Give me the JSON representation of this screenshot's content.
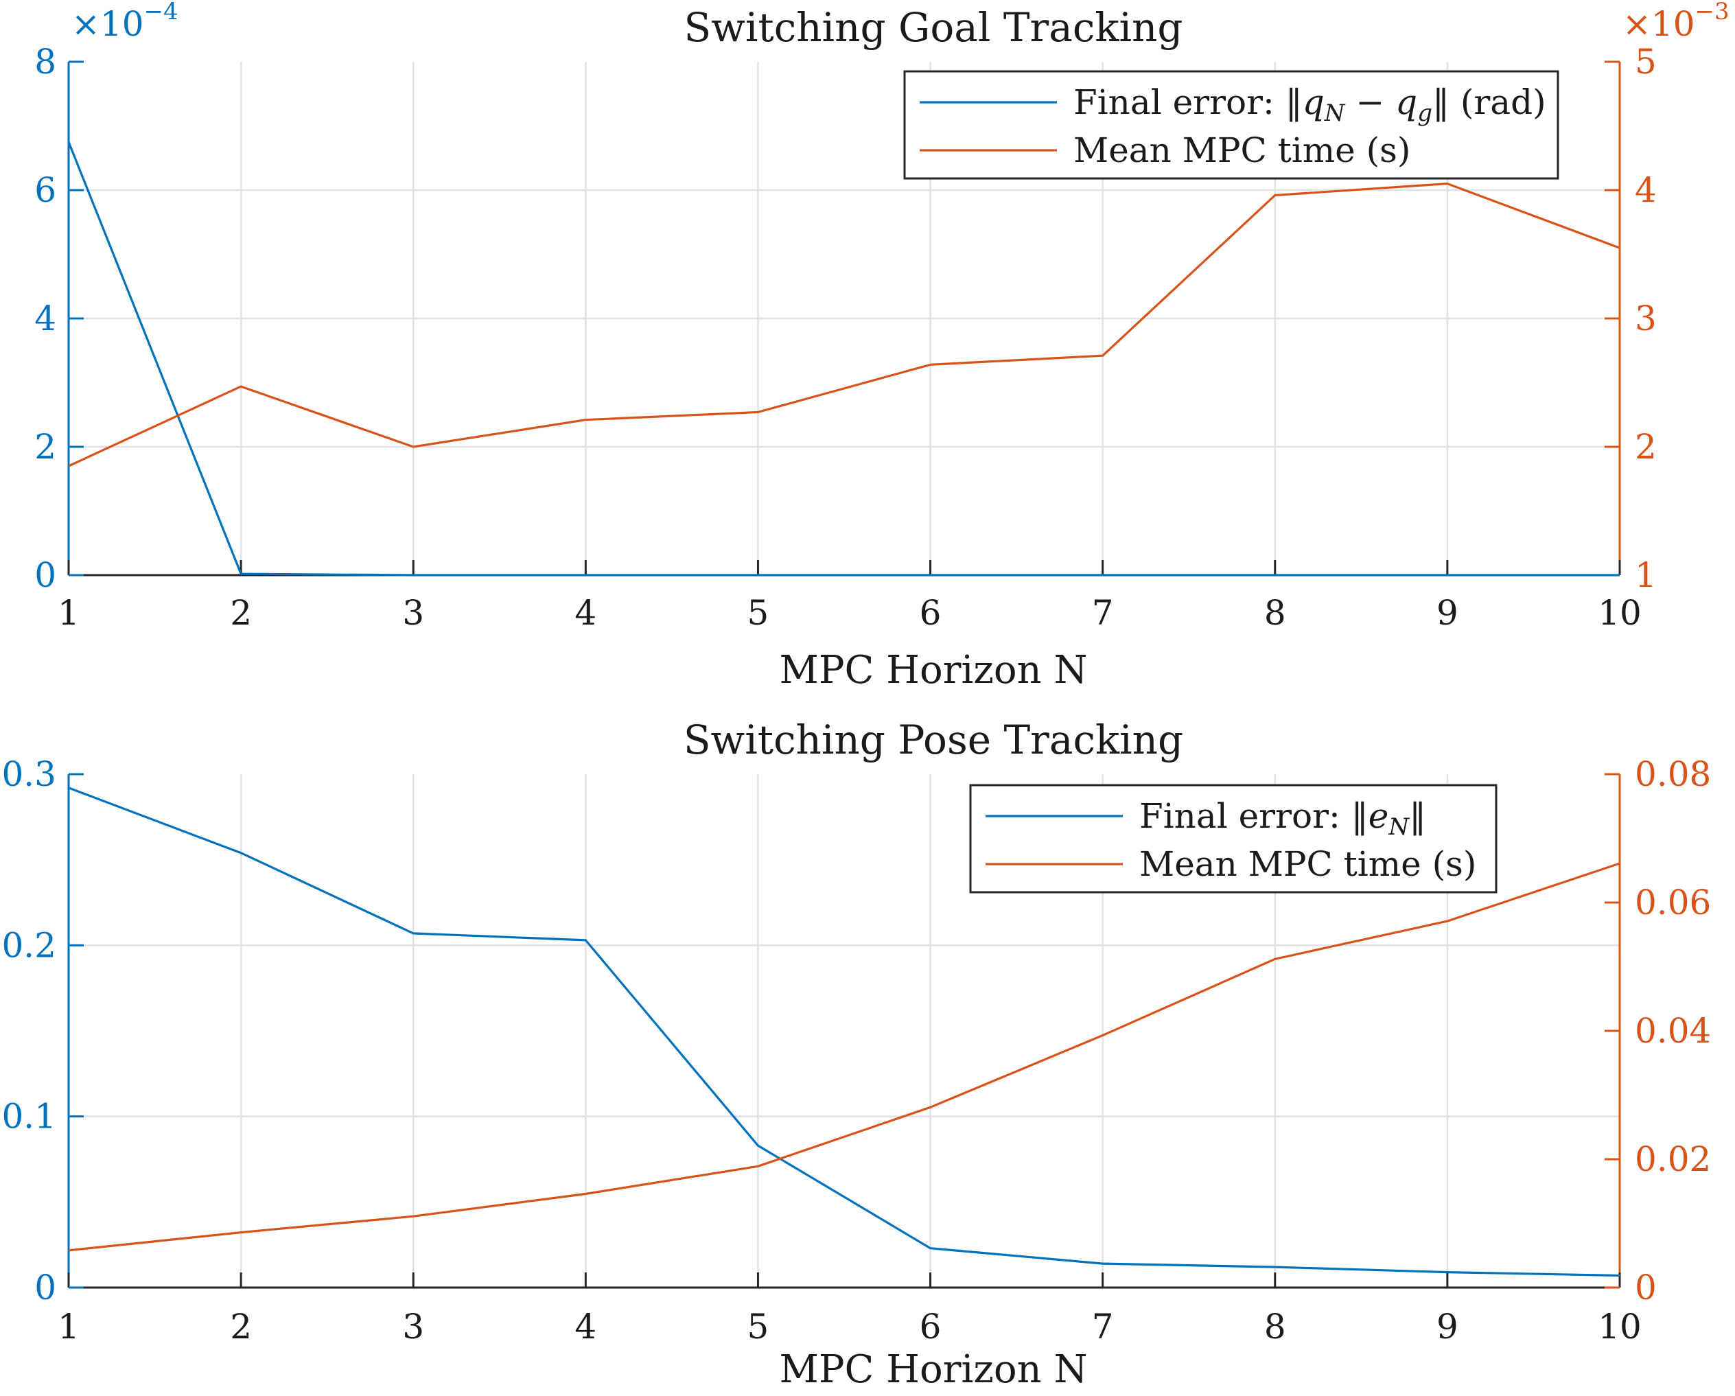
{
  "colors": {
    "left": "#0072bd",
    "right": "#d95319",
    "axis": "#262626",
    "grid": "#dfe3e8",
    "text": "#1a1a1a"
  },
  "chart_data": [
    {
      "type": "line",
      "title": "Switching Goal Tracking",
      "xlabel": "MPC Horizon N",
      "x": [
        1,
        2,
        3,
        4,
        5,
        6,
        7,
        8,
        9,
        10
      ],
      "xlim": [
        1,
        10
      ],
      "xticks": [
        "1",
        "2",
        "3",
        "4",
        "5",
        "6",
        "7",
        "8",
        "9",
        "10"
      ],
      "grid": true,
      "legend_position": "top-right",
      "left_axis": {
        "ylim": [
          0,
          8
        ],
        "ticks": [
          0,
          2,
          4,
          6,
          8
        ],
        "tick_labels": [
          "0",
          "2",
          "4",
          "6",
          "8"
        ],
        "exponent_base": "×10",
        "exponent": "−4"
      },
      "right_axis": {
        "ylim": [
          1,
          5
        ],
        "ticks": [
          1,
          2,
          3,
          4,
          5
        ],
        "tick_labels": [
          "1",
          "2",
          "3",
          "4",
          "5"
        ],
        "exponent_base": "×10",
        "exponent": "−3"
      },
      "series": [
        {
          "name": "Final error: ‖q_N − q_g‖ (rad)",
          "axis": "left",
          "unit_scale": "1e-4",
          "values": [
            6.75,
            0.02,
            0.0,
            0.0,
            0.0,
            0.0,
            0.0,
            0.0,
            0.0,
            0.0
          ]
        },
        {
          "name": "Mean MPC time (s)",
          "axis": "right",
          "unit_scale": "1e-3",
          "values": [
            1.85,
            2.47,
            2.0,
            2.21,
            2.27,
            2.64,
            2.71,
            3.96,
            4.05,
            3.55
          ]
        }
      ]
    },
    {
      "type": "line",
      "title": "Switching Pose Tracking",
      "xlabel": "MPC Horizon N",
      "x": [
        1,
        2,
        3,
        4,
        5,
        6,
        7,
        8,
        9,
        10
      ],
      "xlim": [
        1,
        10
      ],
      "xticks": [
        "1",
        "2",
        "3",
        "4",
        "5",
        "6",
        "7",
        "8",
        "9",
        "10"
      ],
      "grid": true,
      "legend_position": "top-right",
      "left_axis": {
        "ylim": [
          0,
          0.3
        ],
        "ticks": [
          0,
          0.1,
          0.2,
          0.3
        ],
        "tick_labels": [
          "0",
          "0.1",
          "0.2",
          "0.3"
        ]
      },
      "right_axis": {
        "ylim": [
          0,
          0.08
        ],
        "ticks": [
          0,
          0.02,
          0.04,
          0.06,
          0.08
        ],
        "tick_labels": [
          "0",
          "0.02",
          "0.04",
          "0.06",
          "0.08"
        ]
      },
      "series": [
        {
          "name": "Final error: ‖e_N‖",
          "axis": "left",
          "values": [
            0.292,
            0.254,
            0.207,
            0.203,
            0.083,
            0.023,
            0.014,
            0.012,
            0.009,
            0.007
          ]
        },
        {
          "name": "Mean MPC time (s)",
          "axis": "right",
          "values": [
            0.0058,
            0.0086,
            0.0111,
            0.0146,
            0.0189,
            0.0281,
            0.0393,
            0.0512,
            0.0571,
            0.0661
          ]
        }
      ]
    }
  ]
}
